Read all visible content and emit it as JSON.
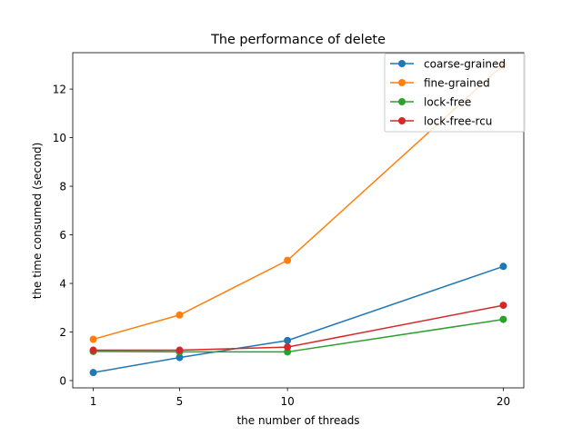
{
  "chart_data": {
    "type": "line",
    "title": "The performance of delete",
    "xlabel": "the number of threads",
    "ylabel": "the time consumed (second)",
    "x": [
      1,
      5,
      10,
      20
    ],
    "xticks": [
      1,
      5,
      10,
      20
    ],
    "xlim": [
      0.05,
      20.95
    ],
    "yticks": [
      0,
      2,
      4,
      6,
      8,
      10,
      12
    ],
    "ylim": [
      -0.3,
      13.5
    ],
    "grid": false,
    "legend_position": "top-right",
    "series": [
      {
        "name": "coarse-grained",
        "color": "#1f77b4",
        "values": [
          0.33,
          0.95,
          1.65,
          4.7
        ]
      },
      {
        "name": "fine-grained",
        "color": "#ff7f0e",
        "values": [
          1.7,
          2.7,
          4.95,
          13.0
        ]
      },
      {
        "name": "lock-free",
        "color": "#2ca02c",
        "values": [
          1.2,
          1.18,
          1.18,
          2.52
        ]
      },
      {
        "name": "lock-free-rcu",
        "color": "#d62728",
        "values": [
          1.25,
          1.25,
          1.38,
          3.1
        ]
      }
    ]
  }
}
